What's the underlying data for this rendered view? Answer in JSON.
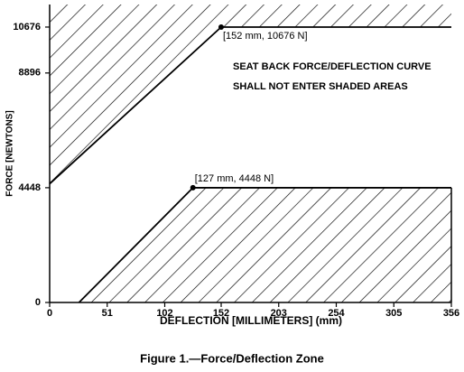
{
  "chart_data": {
    "type": "zone",
    "x_label": "DEFLECTION [MILLIMETERS] (mm)",
    "y_label": "FORCE [NEWTONS]",
    "caption": "Figure 1.—Force/Deflection Zone",
    "note": [
      "SEAT BACK FORCE/DEFLECTION CURVE",
      "SHALL NOT ENTER SHADED AREAS"
    ],
    "xlim": [
      0,
      356
    ],
    "ylim": [
      0,
      11550
    ],
    "xticks": [
      0,
      51,
      102,
      152,
      203,
      254,
      305,
      356
    ],
    "yticks": [
      0,
      4448,
      8896,
      10676
    ],
    "boundaries": [
      {
        "side": "above",
        "x": [
          0,
          152,
          356
        ],
        "y": [
          4600,
          10676,
          10676
        ]
      },
      {
        "side": "below",
        "x": [
          26,
          127,
          356
        ],
        "y": [
          0,
          4448,
          4448
        ]
      }
    ],
    "points": [
      {
        "x": 152,
        "y": 10676,
        "label": "[152 mm, 10676 N]"
      },
      {
        "x": 127,
        "y": 4448,
        "label": "[127 mm, 4448 N]"
      }
    ],
    "color": "#000000"
  }
}
